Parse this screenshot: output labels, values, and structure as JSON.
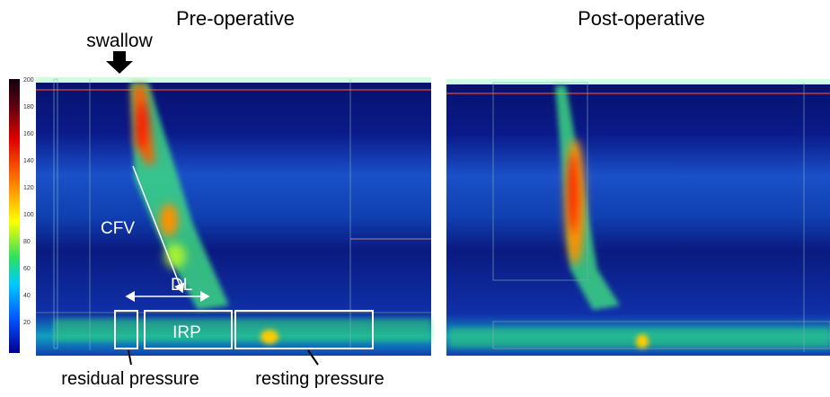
{
  "panels": [
    {
      "title": "Pre-operative"
    },
    {
      "title": "Post-operative"
    }
  ],
  "annotations": {
    "swallow": "swallow",
    "cfv": "CFV",
    "dl": "DL",
    "irp": "IRP",
    "residual": "residual pressure",
    "resting": "resting pressure"
  },
  "colorbar": {
    "ticks": [
      200,
      180,
      160,
      140,
      120,
      100,
      80,
      60,
      40,
      20
    ]
  }
}
